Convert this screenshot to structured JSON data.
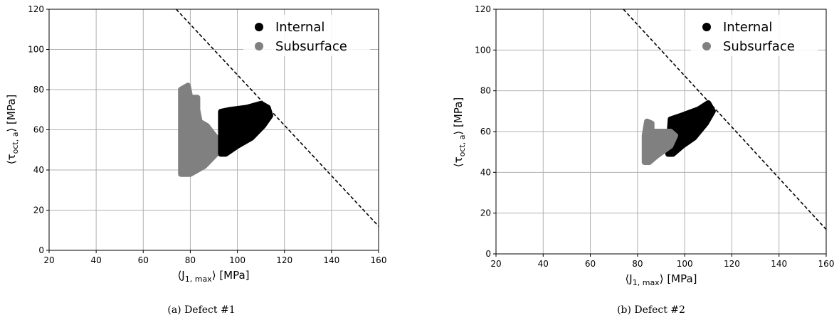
{
  "chart_data": [
    {
      "type": "scatter",
      "caption": "(a) Defect #1",
      "xlabel_main": "⟨J",
      "xlabel_sub": "1, max",
      "xlabel_end": "⟩ [MPa]",
      "ylabel_main": "⟨τ",
      "ylabel_sub": "oct, a",
      "ylabel_end": "⟩ [MPa]",
      "xlim": [
        20,
        160
      ],
      "ylim": [
        0,
        120
      ],
      "xticks": [
        20,
        40,
        60,
        80,
        100,
        120,
        140,
        160
      ],
      "yticks": [
        0,
        20,
        40,
        60,
        80,
        100,
        120
      ],
      "grid": true,
      "legend_position": "top-right",
      "threshold_line": {
        "style": "dashed",
        "color": "#000000",
        "points": [
          [
            74,
            120
          ],
          [
            160,
            12
          ]
        ]
      },
      "series": [
        {
          "name": "Subsurface",
          "color": "#808080",
          "region": [
            [
              76,
              38
            ],
            [
              76,
              80
            ],
            [
              79,
              82
            ],
            [
              80,
              76
            ],
            [
              83,
              76
            ],
            [
              83,
              70
            ],
            [
              84,
              64
            ],
            [
              87,
              62
            ],
            [
              91,
              56
            ],
            [
              92,
              52
            ],
            [
              91,
              48
            ],
            [
              86,
              42
            ],
            [
              80,
              38
            ]
          ]
        },
        {
          "name": "Internal",
          "color": "#000000",
          "region": [
            [
              93,
              48
            ],
            [
              93,
              69
            ],
            [
              97,
              70
            ],
            [
              104,
              71
            ],
            [
              110,
              73
            ],
            [
              113,
              71
            ],
            [
              114,
              67
            ],
            [
              111,
              62
            ],
            [
              106,
              56
            ],
            [
              100,
              52
            ],
            [
              95,
              48
            ]
          ]
        }
      ]
    },
    {
      "type": "scatter",
      "caption": "(b) Defect #2",
      "xlabel_main": "⟨J",
      "xlabel_sub": "1, max",
      "xlabel_end": "⟩ [MPa]",
      "ylabel_main": "⟨τ",
      "ylabel_sub": "oct, a",
      "ylabel_end": "⟩ [MPa]",
      "xlim": [
        20,
        160
      ],
      "ylim": [
        0,
        120
      ],
      "xticks": [
        20,
        40,
        60,
        80,
        100,
        120,
        140,
        160
      ],
      "yticks": [
        0,
        20,
        40,
        60,
        80,
        100,
        120
      ],
      "grid": true,
      "legend_position": "top-right",
      "threshold_line": {
        "style": "dashed",
        "color": "#000000",
        "points": [
          [
            74,
            120
          ],
          [
            160,
            12
          ]
        ]
      },
      "series": [
        {
          "name": "Internal",
          "color": "#000000",
          "region": [
            [
              93,
              49
            ],
            [
              94,
              66
            ],
            [
              99,
              68
            ],
            [
              106,
              71
            ],
            [
              110,
              74
            ],
            [
              112,
              70
            ],
            [
              109,
              64
            ],
            [
              104,
              57
            ],
            [
              99,
              53
            ],
            [
              95,
              49
            ]
          ]
        },
        {
          "name": "Subsurface",
          "color": "#808080",
          "region": [
            [
              83,
              45
            ],
            [
              83,
              58
            ],
            [
              84,
              65
            ],
            [
              86,
              64
            ],
            [
              86,
              60
            ],
            [
              94,
              60
            ],
            [
              96,
              58
            ],
            [
              94,
              53
            ],
            [
              88,
              48
            ],
            [
              85,
              45
            ]
          ]
        }
      ]
    }
  ]
}
